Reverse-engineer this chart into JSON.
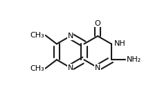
{
  "bg": "#ffffff",
  "bc": "#1a1a1a",
  "bw": 1.5,
  "dbo": 0.022,
  "fs": 8.0,
  "figsize": [
    2.34,
    1.4
  ],
  "dpi": 100,
  "R": 0.118,
  "crx": 0.64,
  "cry": 0.5,
  "xlim": [
    0.05,
    0.98
  ],
  "ylim": [
    0.17,
    0.88
  ]
}
